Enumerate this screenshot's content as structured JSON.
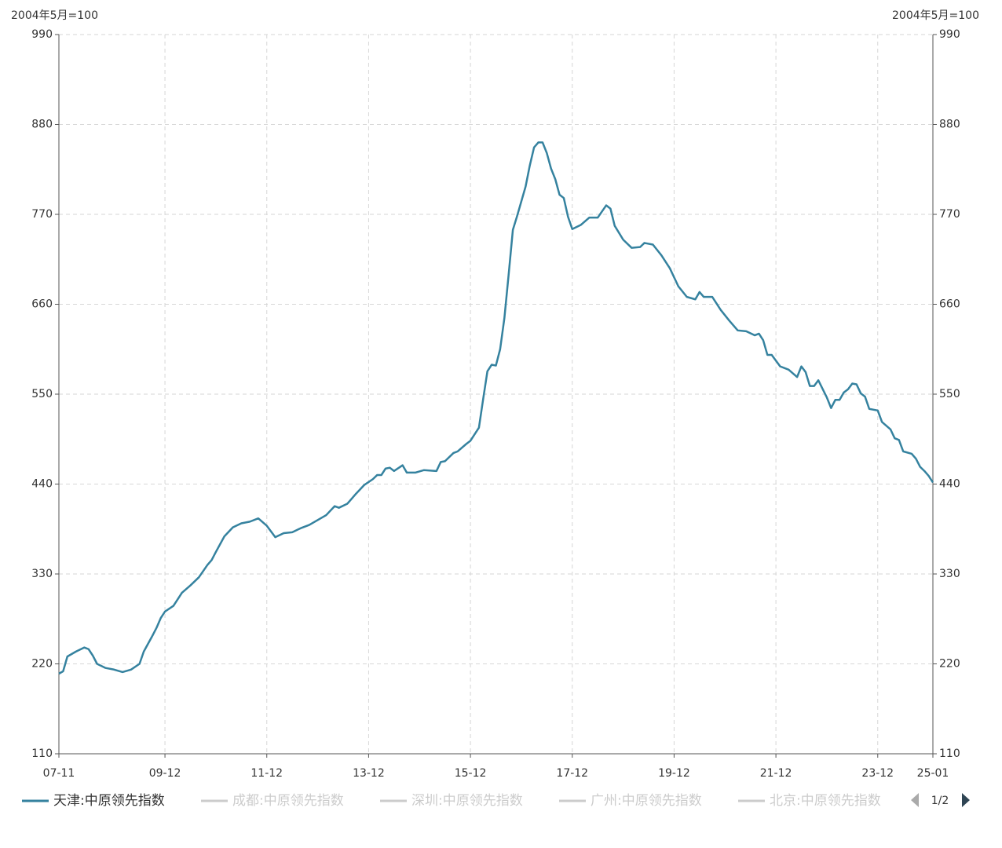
{
  "chart_data": {
    "type": "line",
    "y_axis_title": "2004年5月=100",
    "y2_axis_title": "2004年5月=100",
    "x": [
      "07-11",
      "07-12",
      "08-01",
      "08-03",
      "08-05",
      "08-06",
      "08-07",
      "08-08",
      "08-10",
      "08-12",
      "09-02",
      "09-04",
      "09-06",
      "09-07",
      "09-09",
      "09-10",
      "09-11",
      "09-12",
      "10-02",
      "10-04",
      "10-06",
      "10-08",
      "10-10",
      "10-11",
      "10-12",
      "11-02",
      "11-04",
      "11-06",
      "11-08",
      "11-10",
      "11-12",
      "12-02",
      "12-04",
      "12-06",
      "12-08",
      "12-10",
      "12-12",
      "13-02",
      "13-04",
      "13-05",
      "13-07",
      "13-09",
      "13-11",
      "14-01",
      "14-02",
      "14-03",
      "14-04",
      "14-05",
      "14-06",
      "14-08",
      "14-09",
      "14-11",
      "15-01",
      "15-04",
      "15-05",
      "15-06",
      "15-08",
      "15-09",
      "15-11",
      "15-12",
      "16-02",
      "16-03",
      "16-04",
      "16-05",
      "16-06",
      "16-07",
      "16-08",
      "16-09",
      "16-10",
      "16-11",
      "16-12",
      "17-01",
      "17-02",
      "17-03",
      "17-04",
      "17-05",
      "17-06",
      "17-07",
      "17-08",
      "17-09",
      "17-10",
      "17-11",
      "17-12",
      "18-02",
      "18-04",
      "18-06",
      "18-08",
      "18-09",
      "18-10",
      "18-12",
      "19-02",
      "19-04",
      "19-05",
      "19-07",
      "19-09",
      "19-11",
      "20-01",
      "20-03",
      "20-05",
      "20-06",
      "20-07",
      "20-09",
      "20-11",
      "21-01",
      "21-03",
      "21-05",
      "21-07",
      "21-08",
      "21-09",
      "21-10",
      "21-11",
      "22-01",
      "22-03",
      "22-05",
      "22-06",
      "22-07",
      "22-08",
      "22-09",
      "22-10",
      "22-12",
      "23-01",
      "23-02",
      "23-03",
      "23-04",
      "23-05",
      "23-06",
      "23-07",
      "23-08",
      "23-09",
      "23-10",
      "23-12",
      "24-01",
      "24-03",
      "24-04",
      "24-05",
      "24-06",
      "24-08",
      "24-09",
      "24-10",
      "24-11",
      "24-12",
      "25-01"
    ],
    "series": [
      {
        "name": "天津:中原领先指数",
        "color": "#35829f",
        "values": [
          208,
          211,
          229,
          235,
          240,
          238,
          230,
          220,
          215,
          213,
          210,
          213,
          220,
          235,
          254,
          264,
          276,
          284,
          291,
          307,
          316,
          326,
          341,
          347,
          357,
          376,
          387,
          392,
          394,
          398,
          389,
          375,
          380,
          381,
          386,
          390,
          396,
          402,
          413,
          411,
          416,
          428,
          439,
          446,
          451,
          451,
          459,
          460,
          456,
          463,
          454,
          454,
          457,
          456,
          467,
          468,
          478,
          480,
          489,
          493,
          509,
          544,
          578,
          586,
          585,
          605,
          643,
          696,
          751,
          768,
          786,
          804,
          830,
          852,
          858,
          858,
          845,
          826,
          813,
          794,
          790,
          767,
          752,
          757,
          766,
          766,
          781,
          777,
          756,
          739,
          729,
          730,
          735,
          733,
          720,
          704,
          682,
          669,
          666,
          675,
          669,
          669,
          653,
          640,
          628,
          627,
          622,
          624,
          616,
          598,
          598,
          584,
          580,
          571,
          584,
          577,
          560,
          560,
          567,
          546,
          533,
          543,
          543,
          552,
          556,
          563,
          562,
          551,
          547,
          532,
          530,
          516,
          507,
          496,
          494,
          480,
          477,
          471,
          461,
          456,
          450,
          442
        ]
      }
    ],
    "inactive_legend": [
      "成都:中原领先指数",
      "深圳:中原领先指数",
      "广州:中原领先指数",
      "北京:中原领先指数"
    ],
    "legend_inactive_color": "#cccccc",
    "legend_page": "1/2",
    "xlim": [
      "07-11",
      "25-01"
    ],
    "xticks": [
      "07-11",
      "09-12",
      "11-12",
      "13-12",
      "15-12",
      "17-12",
      "19-12",
      "21-12",
      "23-12",
      "25-01"
    ],
    "ylim": [
      110,
      990
    ],
    "yticks": [
      110,
      220,
      330,
      440,
      550,
      660,
      770,
      880,
      990
    ],
    "y2lim": [
      110,
      990
    ],
    "y2ticks": [
      110,
      220,
      330,
      440,
      550,
      660,
      770,
      880,
      990
    ],
    "grid": true
  }
}
